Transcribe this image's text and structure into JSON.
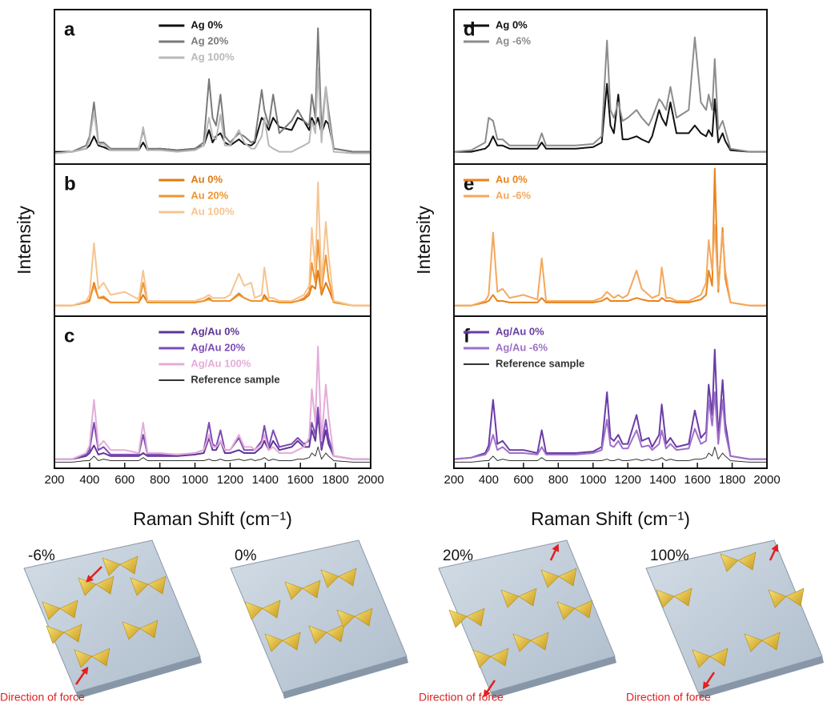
{
  "chart_data": [
    {
      "type": "line",
      "panel_label": "a",
      "legend": "upper center",
      "xlim": [
        200,
        2000
      ],
      "ylim": [
        0,
        100
      ],
      "x": [
        200,
        300,
        380,
        400,
        425,
        450,
        480,
        520,
        600,
        680,
        705,
        730,
        800,
        900,
        1000,
        1050,
        1080,
        1100,
        1120,
        1145,
        1170,
        1200,
        1250,
        1280,
        1320,
        1340,
        1380,
        1395,
        1420,
        1445,
        1480,
        1550,
        1585,
        1620,
        1650,
        1665,
        1685,
        1700,
        1720,
        1745,
        1760,
        1790,
        1900,
        2000
      ],
      "series": [
        {
          "name": "Ag 0%",
          "color": "#111111",
          "line_width": 2,
          "values": [
            8,
            8,
            10,
            12,
            18,
            12,
            11,
            9,
            9,
            9,
            14,
            9,
            10,
            9,
            10,
            12,
            22,
            14,
            18,
            20,
            14,
            12,
            16,
            13,
            12,
            14,
            30,
            28,
            22,
            30,
            24,
            22,
            30,
            28,
            22,
            30,
            25,
            30,
            20,
            28,
            26,
            10,
            8,
            8
          ]
        },
        {
          "name": "Ag 20%",
          "color": "#7a7a7a",
          "line_width": 2,
          "values": [
            7,
            8,
            12,
            18,
            40,
            14,
            14,
            10,
            10,
            10,
            22,
            10,
            10,
            9,
            10,
            14,
            55,
            30,
            25,
            45,
            18,
            14,
            20,
            18,
            14,
            15,
            48,
            35,
            25,
            45,
            20,
            28,
            35,
            28,
            25,
            45,
            30,
            88,
            22,
            50,
            35,
            10,
            8,
            8
          ]
        },
        {
          "name": "Ag 100%",
          "color": "#b8b8b8",
          "line_width": 2,
          "values": [
            7,
            8,
            10,
            16,
            34,
            13,
            13,
            9,
            9,
            9,
            24,
            9,
            9,
            8,
            9,
            12,
            30,
            18,
            16,
            32,
            12,
            12,
            22,
            14,
            10,
            10,
            18,
            30,
            12,
            10,
            8,
            8,
            10,
            12,
            14,
            28,
            20,
            62,
            14,
            50,
            30,
            8,
            7,
            7
          ]
        }
      ]
    },
    {
      "type": "line",
      "panel_label": "b",
      "legend": "upper center",
      "ylabel": "Intensity",
      "xlim": [
        200,
        2000
      ],
      "ylim": [
        0,
        100
      ],
      "x": [
        200,
        300,
        380,
        400,
        425,
        450,
        480,
        520,
        600,
        680,
        705,
        730,
        800,
        900,
        1000,
        1050,
        1080,
        1100,
        1120,
        1145,
        1170,
        1200,
        1250,
        1280,
        1320,
        1340,
        1380,
        1395,
        1420,
        1445,
        1480,
        1550,
        1585,
        1620,
        1650,
        1665,
        1685,
        1700,
        1720,
        1745,
        1760,
        1790,
        1900,
        2000
      ],
      "series": [
        {
          "name": "Au 0%",
          "color": "#e27a12",
          "line_width": 2,
          "values": [
            7,
            7,
            9,
            10,
            22,
            12,
            12,
            9,
            9,
            9,
            14,
            9,
            9,
            9,
            9,
            10,
            12,
            10,
            10,
            10,
            10,
            10,
            15,
            12,
            10,
            10,
            10,
            14,
            10,
            10,
            9,
            9,
            10,
            11,
            14,
            20,
            18,
            30,
            14,
            22,
            18,
            9,
            7,
            7
          ]
        },
        {
          "name": "Au 20%",
          "color": "#f09530",
          "line_width": 2,
          "values": [
            7,
            7,
            9,
            11,
            20,
            12,
            13,
            9,
            9,
            9,
            22,
            9,
            9,
            9,
            9,
            10,
            11,
            10,
            10,
            10,
            10,
            10,
            14,
            12,
            10,
            10,
            10,
            12,
            10,
            10,
            9,
            9,
            10,
            12,
            16,
            35,
            22,
            50,
            16,
            40,
            25,
            9,
            7,
            7
          ]
        },
        {
          "name": "Au 100%",
          "color": "#f6c48f",
          "line_width": 2,
          "values": [
            7,
            7,
            10,
            14,
            48,
            18,
            22,
            14,
            16,
            11,
            30,
            10,
            10,
            10,
            10,
            12,
            14,
            12,
            12,
            12,
            12,
            14,
            28,
            20,
            22,
            12,
            14,
            32,
            12,
            12,
            10,
            10,
            12,
            14,
            20,
            58,
            30,
            88,
            20,
            62,
            40,
            10,
            7,
            7
          ]
        }
      ]
    },
    {
      "type": "line",
      "panel_label": "c",
      "legend": "upper center",
      "xlabel": "Raman Shift (cm⁻¹)",
      "xlim": [
        200,
        2000
      ],
      "ylim": [
        0,
        100
      ],
      "xticks": [
        200,
        400,
        600,
        800,
        1000,
        1200,
        1400,
        1600,
        1800,
        2000
      ],
      "x": [
        200,
        300,
        380,
        400,
        425,
        450,
        480,
        520,
        600,
        680,
        705,
        730,
        800,
        900,
        1000,
        1050,
        1080,
        1100,
        1120,
        1145,
        1170,
        1200,
        1250,
        1280,
        1320,
        1340,
        1380,
        1395,
        1420,
        1445,
        1480,
        1550,
        1585,
        1620,
        1650,
        1665,
        1685,
        1700,
        1720,
        1745,
        1760,
        1790,
        1900,
        2000
      ],
      "series": [
        {
          "name": "Ag/Au 0%",
          "color": "#5e3596",
          "line_width": 2,
          "values": [
            6,
            6,
            8,
            10,
            15,
            9,
            10,
            8,
            8,
            8,
            10,
            8,
            8,
            8,
            9,
            10,
            20,
            12,
            12,
            18,
            10,
            10,
            12,
            10,
            10,
            10,
            14,
            18,
            12,
            18,
            12,
            14,
            18,
            14,
            14,
            25,
            18,
            35,
            12,
            25,
            16,
            8,
            6,
            6
          ]
        },
        {
          "name": "Ag/Au 20%",
          "color": "#7d4cb8",
          "line_width": 2,
          "values": [
            6,
            6,
            9,
            12,
            30,
            12,
            14,
            9,
            9,
            9,
            22,
            9,
            9,
            9,
            10,
            12,
            30,
            16,
            14,
            25,
            12,
            12,
            20,
            12,
            12,
            12,
            18,
            28,
            14,
            25,
            14,
            16,
            20,
            16,
            18,
            30,
            22,
            40,
            14,
            32,
            20,
            8,
            6,
            6
          ]
        },
        {
          "name": "Ag/Au 100%",
          "color": "#e4acd9",
          "line_width": 2,
          "values": [
            6,
            6,
            10,
            15,
            45,
            14,
            18,
            12,
            12,
            10,
            30,
            10,
            10,
            9,
            10,
            12,
            22,
            14,
            14,
            18,
            12,
            12,
            22,
            14,
            14,
            12,
            16,
            22,
            12,
            14,
            10,
            10,
            12,
            14,
            20,
            52,
            30,
            80,
            18,
            55,
            35,
            8,
            6,
            6
          ]
        },
        {
          "name": "Reference sample",
          "color": "#333333",
          "line_width": 1,
          "values": [
            4,
            4,
            5,
            5,
            8,
            5,
            6,
            5,
            5,
            5,
            7,
            5,
            5,
            5,
            5,
            5,
            6,
            5,
            5,
            6,
            5,
            5,
            6,
            5,
            6,
            5,
            6,
            7,
            5,
            6,
            5,
            5,
            6,
            6,
            7,
            10,
            8,
            14,
            6,
            10,
            8,
            5,
            4,
            4
          ]
        }
      ]
    },
    {
      "type": "line",
      "panel_label": "d",
      "legend": "upper left",
      "xlim": [
        200,
        2000
      ],
      "ylim": [
        0,
        100
      ],
      "x": [
        200,
        300,
        380,
        400,
        425,
        450,
        480,
        520,
        600,
        680,
        705,
        730,
        800,
        900,
        1000,
        1050,
        1080,
        1100,
        1120,
        1145,
        1170,
        1200,
        1250,
        1280,
        1320,
        1340,
        1380,
        1395,
        1420,
        1445,
        1480,
        1550,
        1585,
        1620,
        1650,
        1665,
        1685,
        1700,
        1720,
        1745,
        1760,
        1790,
        1900,
        2000
      ],
      "series": [
        {
          "name": "Ag 0%",
          "color": "#111111",
          "line_width": 2,
          "values": [
            8,
            8,
            10,
            12,
            18,
            12,
            12,
            10,
            10,
            10,
            14,
            10,
            10,
            10,
            11,
            14,
            52,
            25,
            20,
            45,
            16,
            16,
            18,
            16,
            14,
            18,
            35,
            30,
            25,
            40,
            20,
            20,
            25,
            20,
            18,
            22,
            18,
            42,
            14,
            20,
            15,
            9,
            8,
            8
          ]
        },
        {
          "name": "Ag -6%",
          "color": "#8c8c8c",
          "line_width": 2,
          "values": [
            8,
            9,
            14,
            30,
            28,
            16,
            16,
            12,
            12,
            12,
            20,
            12,
            12,
            12,
            13,
            18,
            80,
            35,
            30,
            40,
            28,
            30,
            35,
            30,
            25,
            30,
            42,
            40,
            35,
            50,
            30,
            35,
            82,
            40,
            35,
            45,
            35,
            68,
            22,
            28,
            22,
            10,
            8,
            8
          ]
        }
      ]
    },
    {
      "type": "line",
      "panel_label": "e",
      "legend": "upper left",
      "ylabel": "Intensity",
      "xlim": [
        200,
        2000
      ],
      "ylim": [
        0,
        100
      ],
      "x": [
        200,
        300,
        380,
        400,
        425,
        450,
        480,
        520,
        600,
        680,
        705,
        730,
        800,
        900,
        1000,
        1050,
        1080,
        1100,
        1120,
        1145,
        1170,
        1200,
        1250,
        1280,
        1320,
        1340,
        1380,
        1395,
        1420,
        1445,
        1480,
        1550,
        1585,
        1620,
        1650,
        1665,
        1685,
        1700,
        1720,
        1745,
        1760,
        1790,
        1900,
        2000
      ],
      "series": [
        {
          "name": "Au 0%",
          "color": "#e8841c",
          "line_width": 2,
          "values": [
            7,
            7,
            9,
            10,
            14,
            10,
            10,
            9,
            9,
            9,
            12,
            9,
            9,
            9,
            9,
            10,
            12,
            10,
            10,
            10,
            10,
            10,
            12,
            11,
            10,
            10,
            10,
            12,
            10,
            10,
            9,
            9,
            10,
            11,
            14,
            30,
            20,
            97,
            16,
            58,
            25,
            9,
            7,
            7
          ]
        },
        {
          "name": "Au -6%",
          "color": "#f4a85e",
          "line_width": 2,
          "values": [
            7,
            7,
            10,
            14,
            55,
            16,
            18,
            12,
            14,
            11,
            38,
            10,
            10,
            10,
            10,
            12,
            16,
            14,
            12,
            14,
            12,
            14,
            30,
            18,
            14,
            12,
            14,
            32,
            12,
            12,
            10,
            10,
            12,
            14,
            22,
            50,
            30,
            60,
            18,
            55,
            30,
            9,
            7,
            7
          ]
        }
      ]
    },
    {
      "type": "line",
      "panel_label": "f",
      "legend": "upper left",
      "xlabel": "Raman Shift (cm⁻¹)",
      "xlim": [
        200,
        2000
      ],
      "ylim": [
        0,
        100
      ],
      "xticks": [
        200,
        400,
        600,
        800,
        1000,
        1200,
        1400,
        1600,
        1800,
        2000
      ],
      "x": [
        200,
        300,
        380,
        400,
        425,
        450,
        480,
        520,
        600,
        680,
        705,
        730,
        800,
        900,
        1000,
        1050,
        1080,
        1100,
        1120,
        1145,
        1170,
        1200,
        1250,
        1280,
        1320,
        1340,
        1380,
        1395,
        1420,
        1445,
        1480,
        1550,
        1585,
        1620,
        1650,
        1665,
        1685,
        1700,
        1720,
        1745,
        1760,
        1790,
        1900,
        2000
      ],
      "series": [
        {
          "name": "Ag/Au 0%",
          "color": "#6a3ca6",
          "line_width": 2,
          "values": [
            6,
            7,
            10,
            15,
            45,
            16,
            18,
            12,
            12,
            10,
            25,
            10,
            10,
            10,
            11,
            14,
            50,
            20,
            18,
            22,
            16,
            16,
            35,
            18,
            20,
            14,
            22,
            42,
            16,
            20,
            14,
            16,
            38,
            20,
            24,
            55,
            35,
            78,
            20,
            58,
            30,
            8,
            6,
            6
          ]
        },
        {
          "name": "Ag/Au -6%",
          "color": "#9e70c8",
          "line_width": 2,
          "values": [
            6,
            7,
            9,
            12,
            22,
            12,
            14,
            10,
            10,
            9,
            14,
            9,
            9,
            9,
            10,
            12,
            32,
            15,
            14,
            18,
            13,
            13,
            25,
            14,
            15,
            12,
            16,
            25,
            13,
            16,
            12,
            13,
            26,
            16,
            18,
            45,
            28,
            50,
            16,
            45,
            24,
            8,
            6,
            6
          ]
        },
        {
          "name": "Reference sample",
          "color": "#333333",
          "line_width": 1,
          "values": [
            4,
            4,
            5,
            5,
            8,
            5,
            6,
            5,
            5,
            5,
            7,
            5,
            5,
            5,
            5,
            5,
            6,
            5,
            5,
            6,
            5,
            5,
            6,
            5,
            6,
            5,
            6,
            7,
            5,
            6,
            5,
            5,
            6,
            6,
            7,
            10,
            8,
            14,
            6,
            10,
            8,
            5,
            4,
            4
          ]
        }
      ]
    }
  ],
  "illustrations": [
    {
      "label": "-6%",
      "caption": "Direction of force"
    },
    {
      "label": "0%"
    },
    {
      "label": "20%",
      "caption": "Direction of force"
    },
    {
      "label": "100%",
      "caption": "Direction of force"
    }
  ]
}
